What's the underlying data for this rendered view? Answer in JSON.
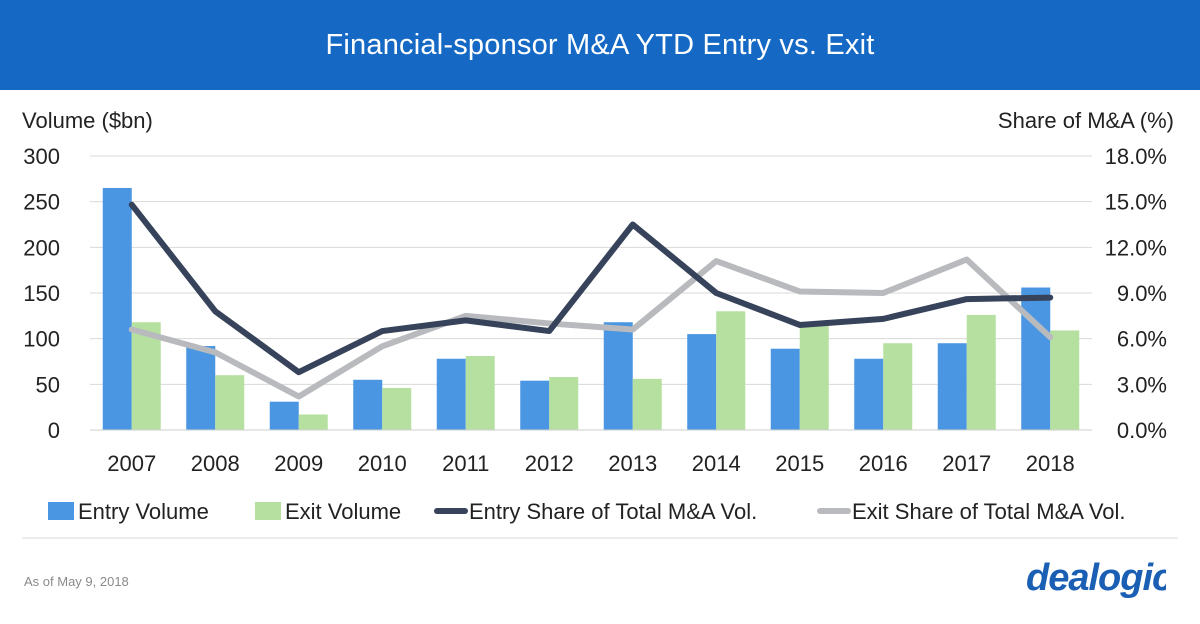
{
  "header": {
    "title": "Financial-sponsor  M&A YTD Entry vs. Exit"
  },
  "footer": {
    "note": "As of May 9, 2018",
    "logo_text": "dealogic"
  },
  "colors": {
    "header_bg": "#1569c4",
    "entry_volume": "#4a96e2",
    "exit_volume": "#b5e0a0",
    "entry_share": "#37435a",
    "exit_share": "#b8babe",
    "logo": "#1a5fb4"
  },
  "chart_data": {
    "type": "bar",
    "title": "Financial-sponsor  M&A YTD Entry vs. Exit",
    "categories": [
      "2007",
      "2008",
      "2009",
      "2010",
      "2011",
      "2012",
      "2013",
      "2014",
      "2015",
      "2016",
      "2017",
      "2018"
    ],
    "ylabel": "Volume ($bn)",
    "ylim": [
      0,
      300
    ],
    "yticks": [
      "0",
      "50",
      "100",
      "150",
      "200",
      "250",
      "300"
    ],
    "y2label": "Share of M&A (%)",
    "y2lim": [
      0,
      18
    ],
    "y2ticks": [
      "0.0%",
      "3.0%",
      "6.0%",
      "9.0%",
      "12.0%",
      "15.0%",
      "18.0%"
    ],
    "grid": true,
    "legend_position": "bottom",
    "series": [
      {
        "name": "Entry Volume",
        "kind": "bar",
        "axis": "left",
        "values": [
          265,
          92,
          31,
          55,
          78,
          54,
          118,
          105,
          89,
          78,
          95,
          156
        ]
      },
      {
        "name": "Exit Volume",
        "kind": "bar",
        "axis": "left",
        "values": [
          118,
          60,
          17,
          46,
          81,
          58,
          56,
          130,
          115,
          95,
          126,
          109
        ]
      },
      {
        "name": "Entry Share of Total M&A Vol.",
        "kind": "line",
        "axis": "right",
        "values": [
          14.8,
          7.8,
          3.8,
          6.5,
          7.2,
          6.5,
          13.5,
          9.0,
          6.9,
          7.3,
          8.6,
          8.7
        ]
      },
      {
        "name": "Exit Share of Total M&A Vol.",
        "kind": "line",
        "axis": "right",
        "values": [
          6.6,
          5.1,
          2.2,
          5.5,
          7.5,
          7.0,
          6.6,
          11.1,
          9.1,
          9.0,
          11.2,
          6.1
        ]
      }
    ]
  }
}
